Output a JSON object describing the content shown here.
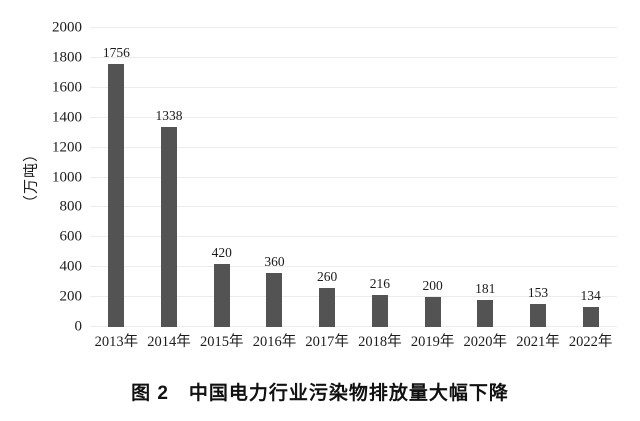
{
  "figure": {
    "caption": "图 2　中国电力行业污染物排放量大幅下降"
  },
  "colors": {
    "bar": "#535353",
    "gridline": "#ececec",
    "text": "#1c1c1c",
    "background": "#ffffff"
  },
  "chart_data": {
    "type": "bar",
    "title": "图 2 中国电力行业污染物排放量大幅下降",
    "xlabel": "",
    "ylabel": "（万吨）",
    "categories": [
      "2013年",
      "2014年",
      "2015年",
      "2016年",
      "2017年",
      "2018年",
      "2019年",
      "2020年",
      "2021年",
      "2022年"
    ],
    "values": [
      1756,
      1338,
      420,
      360,
      260,
      216,
      200,
      181,
      153,
      134
    ],
    "data_labels_shown": true,
    "ylim": [
      0,
      2000
    ],
    "yticks": [
      0,
      200,
      400,
      600,
      800,
      1000,
      1200,
      1400,
      1600,
      1800,
      2000
    ],
    "grid": "horizontal",
    "legend_position": "none",
    "bar_color": "#535353"
  }
}
